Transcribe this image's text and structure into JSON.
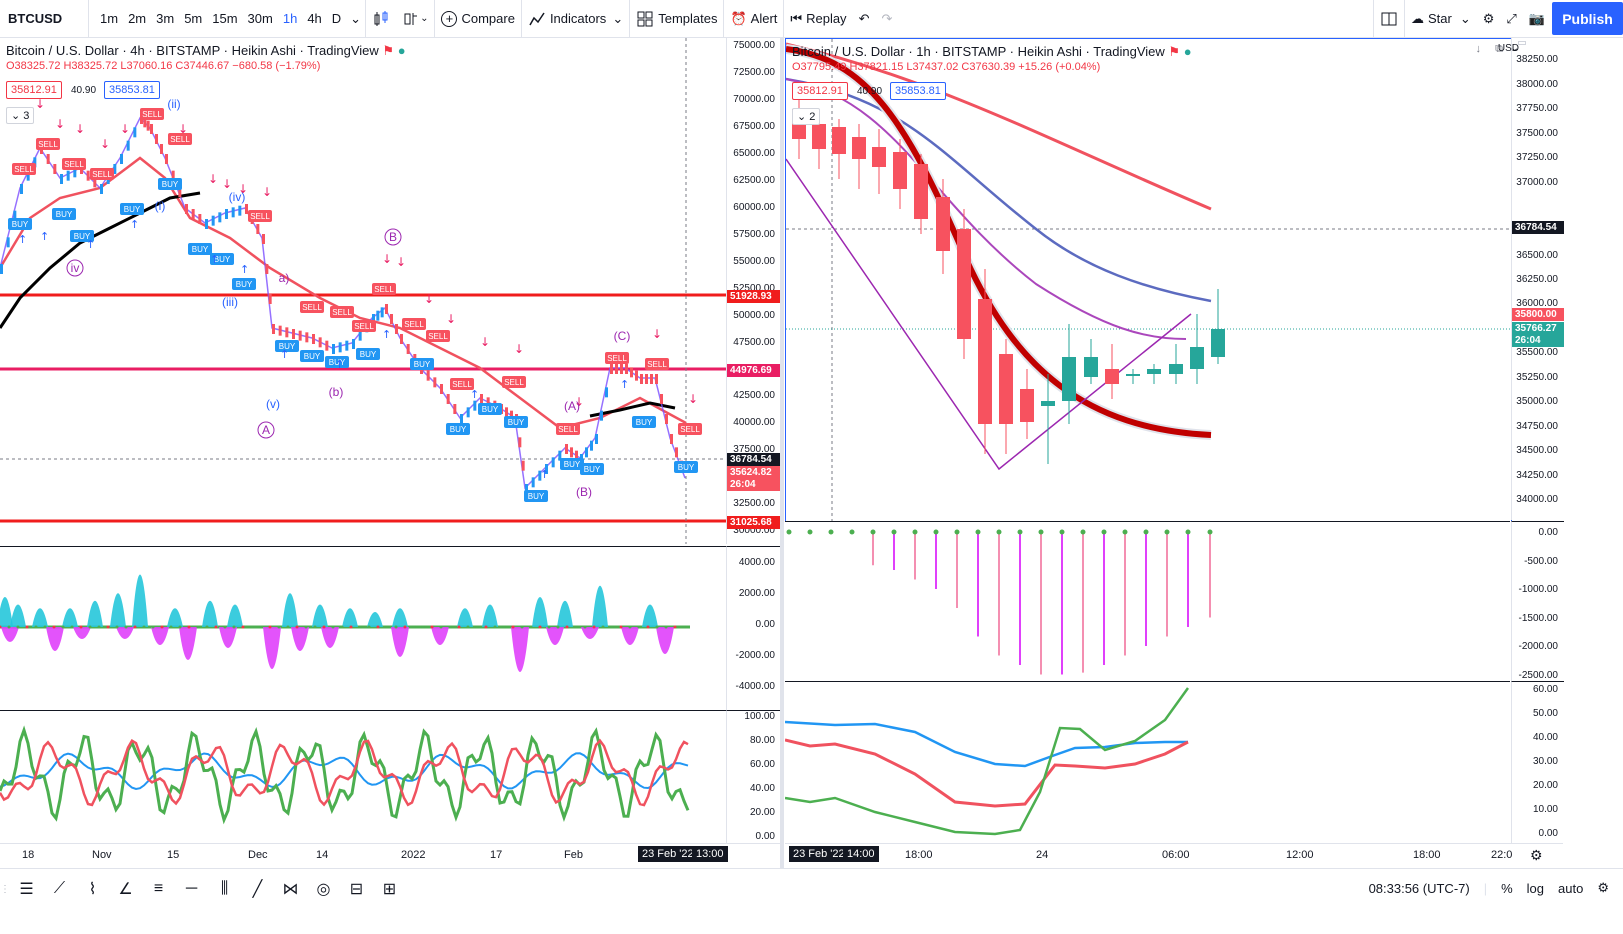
{
  "toolbar": {
    "symbol": "BTCUSD",
    "timeframes": [
      "1m",
      "2m",
      "3m",
      "5m",
      "15m",
      "30m",
      "1h",
      "4h",
      "D"
    ],
    "active_tf": "1h",
    "compare": "Compare",
    "indicators": "Indicators",
    "templates": "Templates",
    "alert": "Alert",
    "replay": "Replay",
    "star": "Star",
    "publish": "Publish"
  },
  "left": {
    "legend": "Bitcoin / U.S. Dollar · 4h · BITSTAMP · Heikin Ashi · TradingView",
    "ohlc": "O38325.72  H38325.72  L37060.16  C37446.67  −680.58 (−1.79%)",
    "bid": "35812.91",
    "spread": "40.90",
    "ask": "35853.81",
    "collapse_count": "3",
    "axis_prices": [
      "75000.00",
      "72500.00",
      "70000.00",
      "67500.00",
      "65000.00",
      "62500.00",
      "60000.00",
      "57500.00",
      "55000.00",
      "52500.00",
      "50000.00",
      "47500.00",
      "42500.00",
      "40000.00",
      "37500.00",
      "32500.00",
      "30000.00"
    ],
    "level_labels": [
      "51928.93",
      "44976.69",
      "36784.54",
      "35624.82",
      "26:04",
      "31025.68"
    ],
    "osc_axis": [
      "4000.00",
      "2000.00",
      "0.00",
      "-2000.00",
      "-4000.00"
    ],
    "rsi_axis": [
      "100.00",
      "80.00",
      "60.00",
      "40.00",
      "20.00",
      "0.00"
    ],
    "time_labels": [
      "18",
      "Nov",
      "15",
      "Dec",
      "14",
      "2022",
      "17",
      "Feb"
    ],
    "cursor_date": "23 Feb '22",
    "cursor_time": "13:00",
    "wave_labels": [
      "(ii)",
      "(i)",
      "(iv)",
      "iv",
      "(iii)",
      "B",
      "a)",
      "(b)",
      "(v)",
      "A",
      "(A)",
      "(B)",
      "(C)"
    ],
    "signal_labels": [
      "SELL",
      "BUY"
    ]
  },
  "right": {
    "legend": "Bitcoin / U.S. Dollar · 1h · BITSTAMP · Heikin Ashi · TradingView",
    "ohlc": "O37795.49  H37821.15  L37437.02  C37630.39  +15.26 (+0.04%)",
    "bid": "35812.91",
    "spread": "40.90",
    "ask": "35853.81",
    "collapse_count": "2",
    "currency": "USD",
    "axis_prices": [
      "38250.00",
      "38000.00",
      "37750.00",
      "37500.00",
      "37250.00",
      "37000.00",
      "36500.00",
      "36250.00",
      "36000.00",
      "35500.00",
      "35250.00",
      "35000.00",
      "34750.00",
      "34500.00",
      "34250.00",
      "34000.00"
    ],
    "crosshair_price": "36784.54",
    "last_price": "35800.00",
    "close_price": "35766.27",
    "countdown": "26:04",
    "osc_axis": [
      "0.00",
      "-500.00",
      "-1000.00",
      "-1500.00",
      "-2000.00",
      "-2500.00"
    ],
    "dmi_axis": [
      "60.00",
      "50.00",
      "40.00",
      "30.00",
      "20.00",
      "10.00",
      "0.00"
    ],
    "cursor_date": "23 Feb '22",
    "cursor_time": "14:00",
    "time_labels": [
      "18:00",
      "24",
      "06:00",
      "12:00",
      "18:00",
      "22:0"
    ]
  },
  "status": {
    "clock": "08:33:56 (UTC-7)",
    "percent": "%",
    "log": "log",
    "auto": "auto"
  },
  "colors": {
    "accent": "#2962ff",
    "bear": "#f7525f",
    "bull": "#26a69a",
    "level_red": "#f01d1d",
    "level_pink": "#e91e63"
  }
}
